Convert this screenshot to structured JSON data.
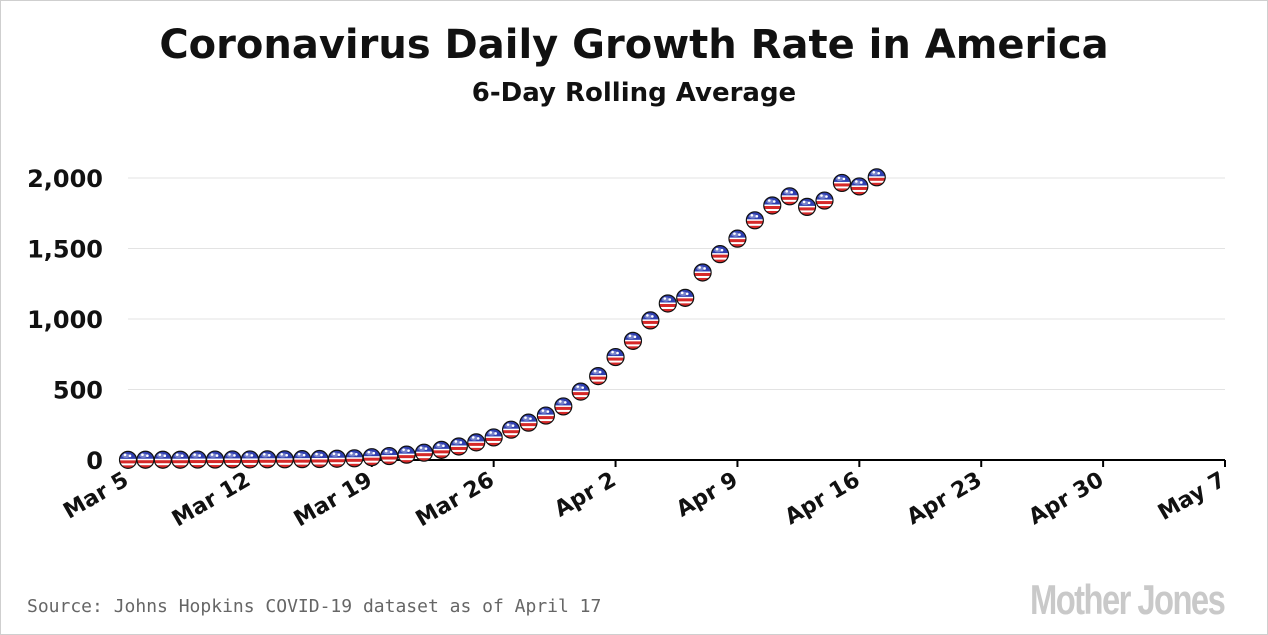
{
  "chart_data": {
    "type": "scatter",
    "title": "Coronavirus Daily Growth Rate in America",
    "subtitle": "6-Day Rolling Average",
    "xlabel": "",
    "ylabel": "",
    "y_ticks": [
      0,
      500,
      1000,
      1500,
      2000
    ],
    "y_tick_labels": [
      "0",
      "500",
      "1,000",
      "1,500",
      "2,000"
    ],
    "x_tick_labels": [
      "Mar 5",
      "Mar 12",
      "Mar 19",
      "Mar 26",
      "Apr 2",
      "Apr 9",
      "Apr 16",
      "Apr 23",
      "Apr 30",
      "May 7"
    ],
    "xlim": [
      "Mar 5",
      "May 7"
    ],
    "ylim": [
      0,
      2000
    ],
    "grid": true,
    "marker": "flag-ball",
    "colors": {
      "grid": "#e3e3e3",
      "axis": "#000000",
      "marker_red": "#d62828",
      "marker_blue": "#2f3fb0",
      "marker_white": "#ffffff"
    },
    "series": [
      {
        "x": [
          "Mar 5",
          "Mar 6",
          "Mar 7",
          "Mar 8",
          "Mar 9",
          "Mar 10",
          "Mar 11",
          "Mar 12",
          "Mar 13",
          "Mar 14",
          "Mar 15",
          "Mar 16",
          "Mar 17",
          "Mar 18",
          "Mar 19",
          "Mar 20",
          "Mar 21",
          "Mar 22",
          "Mar 23",
          "Mar 24",
          "Mar 25",
          "Mar 26",
          "Mar 27",
          "Mar 28",
          "Mar 29",
          "Mar 30",
          "Mar 31",
          "Apr 1",
          "Apr 2",
          "Apr 3",
          "Apr 4",
          "Apr 5",
          "Apr 6",
          "Apr 7",
          "Apr 8",
          "Apr 9",
          "Apr 10",
          "Apr 11",
          "Apr 12",
          "Apr 13",
          "Apr 14",
          "Apr 15",
          "Apr 16",
          "Apr 17"
        ],
        "values": [
          1,
          2,
          2,
          2,
          3,
          3,
          4,
          4,
          5,
          5,
          6,
          7,
          9,
          12,
          20,
          28,
          38,
          52,
          72,
          96,
          125,
          160,
          215,
          265,
          315,
          380,
          485,
          595,
          730,
          845,
          990,
          1110,
          1150,
          1330,
          1460,
          1570,
          1700,
          1805,
          1870,
          1795,
          1840,
          1965,
          1940,
          2005
        ]
      }
    ]
  },
  "source_text": "Source: Johns Hopkins COVID-19 dataset as of April 17",
  "logo_text": "Mother Jones"
}
